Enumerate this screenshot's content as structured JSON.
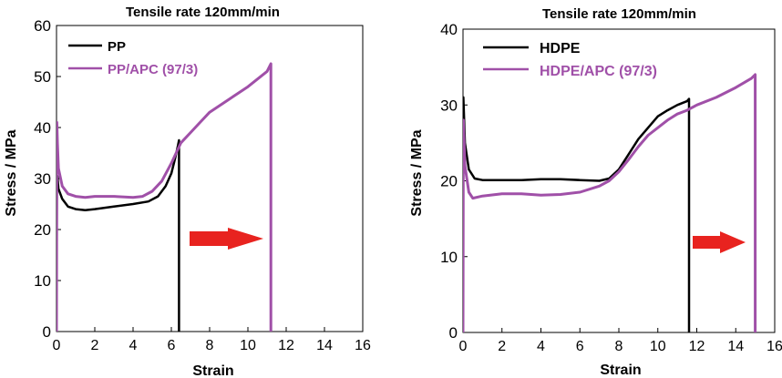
{
  "chart_data": [
    {
      "type": "line",
      "title": "Tensile rate 120mm/min",
      "xlabel": "Strain",
      "ylabel": "Stress / MPa",
      "xlim": [
        0,
        16
      ],
      "ylim": [
        0,
        60
      ],
      "xticks": [
        "0",
        "2",
        "4",
        "6",
        "8",
        "10",
        "12",
        "14",
        "16"
      ],
      "yticks": [
        "0",
        "10",
        "20",
        "30",
        "40",
        "50",
        "60"
      ],
      "grid": false,
      "legend": "top-left",
      "annotation": "red arrow pointing right",
      "series": [
        {
          "name": "PP",
          "color": "#000000",
          "x": [
            0,
            0.02,
            0.05,
            0.1,
            0.3,
            0.6,
            1.0,
            1.5,
            2.0,
            3.0,
            4.0,
            4.8,
            5.3,
            5.7,
            6.0,
            6.2,
            6.35,
            6.4,
            6.4
          ],
          "y": [
            0,
            29,
            30.5,
            28,
            26,
            24.5,
            24,
            23.8,
            24,
            24.5,
            25,
            25.5,
            26.5,
            28.5,
            31,
            34,
            36.5,
            37.5,
            0
          ]
        },
        {
          "name": "PP/APC (97/3)",
          "color": "#a050a8",
          "x": [
            0,
            0.02,
            0.05,
            0.1,
            0.3,
            0.6,
            1.0,
            1.5,
            2.0,
            3.0,
            4.0,
            4.5,
            5.0,
            5.5,
            6.0,
            6.5,
            7.0,
            7.5,
            8.0,
            9.0,
            10.0,
            10.5,
            11.0,
            11.2,
            11.2
          ],
          "y": [
            0,
            41,
            37,
            32,
            28.5,
            27,
            26.5,
            26.3,
            26.5,
            26.5,
            26.3,
            26.5,
            27.5,
            29.5,
            33,
            37,
            39,
            41,
            43,
            45.5,
            48,
            49.5,
            51,
            52.5,
            0
          ]
        }
      ]
    },
    {
      "type": "line",
      "title": "Tensile rate 120mm/min",
      "xlabel": "Strain",
      "ylabel": "Stress / MPa",
      "xlim": [
        0,
        16
      ],
      "ylim": [
        0,
        40
      ],
      "xticks": [
        "0",
        "2",
        "4",
        "6",
        "8",
        "10",
        "12",
        "14",
        "16"
      ],
      "yticks": [
        "0",
        "10",
        "20",
        "30",
        "40"
      ],
      "grid": false,
      "legend": "top-left",
      "annotation": "red arrow pointing right",
      "series": [
        {
          "name": "HDPE",
          "color": "#000000",
          "x": [
            0,
            0.02,
            0.1,
            0.3,
            0.6,
            1.0,
            2.0,
            3.0,
            4.0,
            5.0,
            6.0,
            7.0,
            7.5,
            8.0,
            8.5,
            9.0,
            9.5,
            10.0,
            10.5,
            11.0,
            11.5,
            11.6,
            11.6
          ],
          "y": [
            0,
            31,
            25,
            21.5,
            20.3,
            20.1,
            20.1,
            20.1,
            20.2,
            20.2,
            20.1,
            20.0,
            20.3,
            21.5,
            23.5,
            25.5,
            27,
            28.5,
            29.3,
            30,
            30.5,
            30.8,
            0
          ]
        },
        {
          "name": "HDPE/APC (97/3)",
          "color": "#a050a8",
          "x": [
            0,
            0.02,
            0.1,
            0.3,
            0.5,
            1.0,
            2.0,
            3.0,
            4.0,
            5.0,
            6.0,
            7.0,
            7.5,
            8.0,
            8.5,
            9.0,
            9.5,
            10.0,
            10.5,
            11.0,
            11.5,
            12.0,
            13.0,
            14.0,
            14.8,
            15.0,
            15.0
          ],
          "y": [
            0,
            28,
            22,
            18.5,
            17.7,
            18,
            18.3,
            18.3,
            18.1,
            18.2,
            18.5,
            19.3,
            20,
            21.2,
            22.8,
            24.5,
            26,
            27,
            28,
            28.8,
            29.3,
            30,
            31,
            32.3,
            33.5,
            34,
            0
          ]
        }
      ]
    }
  ]
}
